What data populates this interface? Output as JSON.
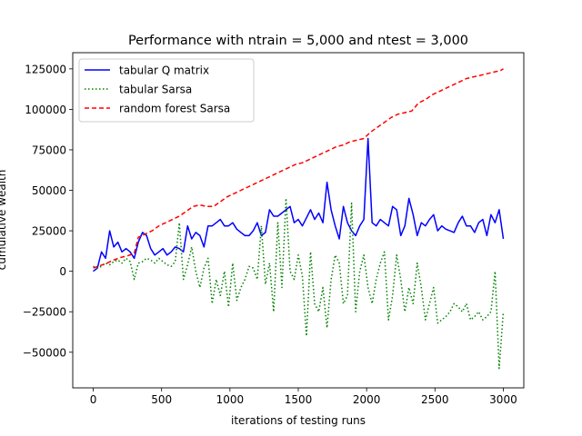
{
  "chart_data": {
    "type": "line",
    "title": "Performance with ntrain = 5,000 and ntest = 3,000",
    "xlabel": "iterations of testing runs",
    "ylabel": "cumulative wealth",
    "xlim": [
      -150,
      3150
    ],
    "ylim": [
      -72000,
      135000
    ],
    "xticks": [
      0,
      500,
      1000,
      1500,
      2000,
      2500,
      3000
    ],
    "xtick_labels": [
      "0",
      "500",
      "1000",
      "1500",
      "2000",
      "2500",
      "3000"
    ],
    "yticks": [
      -50000,
      -25000,
      0,
      25000,
      50000,
      75000,
      100000,
      125000
    ],
    "ytick_labels": [
      "−50000",
      "−25000",
      "0",
      "25000",
      "50000",
      "75000",
      "100000",
      "125000"
    ],
    "grid": false,
    "legend_position": "top-left",
    "series": [
      {
        "name": "tabular Q matrix",
        "color": "#0000ff",
        "dash": "solid",
        "x": [
          0,
          30,
          60,
          90,
          120,
          150,
          180,
          210,
          240,
          270,
          300,
          330,
          360,
          390,
          420,
          450,
          480,
          510,
          540,
          570,
          600,
          630,
          660,
          690,
          720,
          750,
          780,
          810,
          840,
          870,
          900,
          930,
          960,
          990,
          1020,
          1050,
          1080,
          1110,
          1140,
          1170,
          1200,
          1230,
          1260,
          1290,
          1320,
          1350,
          1380,
          1410,
          1440,
          1470,
          1500,
          1530,
          1560,
          1590,
          1620,
          1650,
          1680,
          1710,
          1740,
          1770,
          1800,
          1830,
          1860,
          1890,
          1920,
          1950,
          1980,
          2010,
          2040,
          2070,
          2100,
          2130,
          2160,
          2190,
          2220,
          2250,
          2280,
          2310,
          2340,
          2370,
          2400,
          2430,
          2460,
          2490,
          2520,
          2550,
          2580,
          2610,
          2640,
          2670,
          2700,
          2730,
          2760,
          2790,
          2820,
          2850,
          2880,
          2910,
          2940,
          2970,
          3000
        ],
        "y": [
          0,
          2000,
          12000,
          8000,
          25000,
          15000,
          18000,
          12000,
          14000,
          12000,
          8000,
          18000,
          24000,
          22000,
          14000,
          10000,
          12000,
          14000,
          10000,
          12000,
          15000,
          14000,
          12000,
          28000,
          20000,
          24000,
          22000,
          15000,
          28000,
          28000,
          30000,
          32000,
          28000,
          28000,
          30000,
          26000,
          24000,
          22000,
          22000,
          25000,
          30000,
          22000,
          24000,
          38000,
          34000,
          34000,
          36000,
          38000,
          40000,
          30000,
          32000,
          28000,
          33000,
          38000,
          32000,
          36000,
          30000,
          55000,
          38000,
          28000,
          20000,
          40000,
          30000,
          25000,
          22000,
          28000,
          32000,
          82000,
          30000,
          28000,
          32000,
          30000,
          28000,
          40000,
          38000,
          22000,
          28000,
          45000,
          35000,
          22000,
          30000,
          28000,
          32000,
          35000,
          25000,
          28000,
          26000,
          25000,
          24000,
          30000,
          34000,
          28000,
          28000,
          24000,
          30000,
          32000,
          22000,
          35000,
          30000,
          38000,
          20000
        ]
      },
      {
        "name": "tabular Sarsa",
        "color": "#008000",
        "dash": "dotted",
        "x": [
          0,
          30,
          60,
          90,
          120,
          150,
          180,
          210,
          240,
          270,
          300,
          330,
          360,
          390,
          420,
          450,
          480,
          510,
          540,
          570,
          600,
          630,
          660,
          690,
          720,
          750,
          780,
          810,
          840,
          870,
          900,
          930,
          960,
          990,
          1020,
          1050,
          1080,
          1110,
          1140,
          1170,
          1200,
          1230,
          1260,
          1290,
          1320,
          1350,
          1380,
          1410,
          1440,
          1470,
          1500,
          1530,
          1560,
          1590,
          1620,
          1650,
          1680,
          1710,
          1740,
          1770,
          1800,
          1830,
          1860,
          1890,
          1920,
          1950,
          1980,
          2010,
          2040,
          2070,
          2100,
          2130,
          2160,
          2190,
          2220,
          2250,
          2280,
          2310,
          2340,
          2370,
          2400,
          2430,
          2460,
          2490,
          2520,
          2550,
          2580,
          2610,
          2640,
          2670,
          2700,
          2730,
          2760,
          2790,
          2820,
          2850,
          2880,
          2910,
          2940,
          2970,
          3000
        ],
        "y": [
          3000,
          2000,
          3000,
          5000,
          4000,
          6000,
          7000,
          5000,
          8000,
          6000,
          -5000,
          5000,
          6000,
          8000,
          7000,
          5000,
          8000,
          6000,
          4000,
          3000,
          6000,
          30000,
          -5000,
          4000,
          15000,
          0,
          -10000,
          2000,
          8000,
          -20000,
          -5000,
          -15000,
          0,
          -22000,
          5000,
          -18000,
          -10000,
          -5000,
          3000,
          2000,
          -5000,
          28000,
          -8000,
          5000,
          -25000,
          30000,
          -10000,
          45000,
          0,
          -5000,
          10000,
          -3000,
          -40000,
          12000,
          -20000,
          -25000,
          -10000,
          -35000,
          -5000,
          10000,
          5000,
          -20000,
          -15000,
          42000,
          -25000,
          0,
          10000,
          -10000,
          -20000,
          -5000,
          5000,
          12000,
          -30000,
          -15000,
          10000,
          -5000,
          -25000,
          -10000,
          -20000,
          5000,
          -10000,
          -30000,
          -20000,
          -10000,
          -32000,
          -30000,
          -28000,
          -25000,
          -20000,
          -22000,
          -25000,
          -20000,
          -30000,
          -28000,
          -25000,
          -30000,
          -28000,
          -25000,
          0,
          -60000,
          -25000
        ]
      },
      {
        "name": "random forest Sarsa",
        "color": "#ff0000",
        "dash": "dashed",
        "x": [
          0,
          50,
          100,
          150,
          200,
          250,
          300,
          330,
          380,
          430,
          480,
          530,
          580,
          630,
          680,
          730,
          780,
          830,
          880,
          930,
          980,
          1030,
          1080,
          1130,
          1180,
          1230,
          1280,
          1330,
          1380,
          1430,
          1480,
          1530,
          1580,
          1630,
          1680,
          1730,
          1780,
          1830,
          1880,
          1930,
          1980,
          2030,
          2080,
          2130,
          2180,
          2230,
          2280,
          2330,
          2380,
          2430,
          2480,
          2530,
          2580,
          2630,
          2680,
          2730,
          2780,
          2830,
          2880,
          2930,
          2980,
          3000
        ],
        "y": [
          2000,
          3500,
          5000,
          7000,
          8500,
          9500,
          11000,
          21000,
          23000,
          25000,
          28000,
          30000,
          32000,
          34000,
          37000,
          40000,
          41000,
          40000,
          40000,
          43000,
          46000,
          48000,
          50000,
          52000,
          54000,
          56000,
          58000,
          60000,
          62000,
          64000,
          66000,
          67000,
          69000,
          71000,
          73000,
          75000,
          77000,
          78000,
          80000,
          81000,
          82000,
          86000,
          89000,
          92000,
          95000,
          97000,
          98000,
          99000,
          104000,
          106000,
          109000,
          111000,
          113000,
          115000,
          117000,
          119000,
          120000,
          121000,
          122000,
          123000,
          124000,
          125000
        ]
      }
    ]
  }
}
